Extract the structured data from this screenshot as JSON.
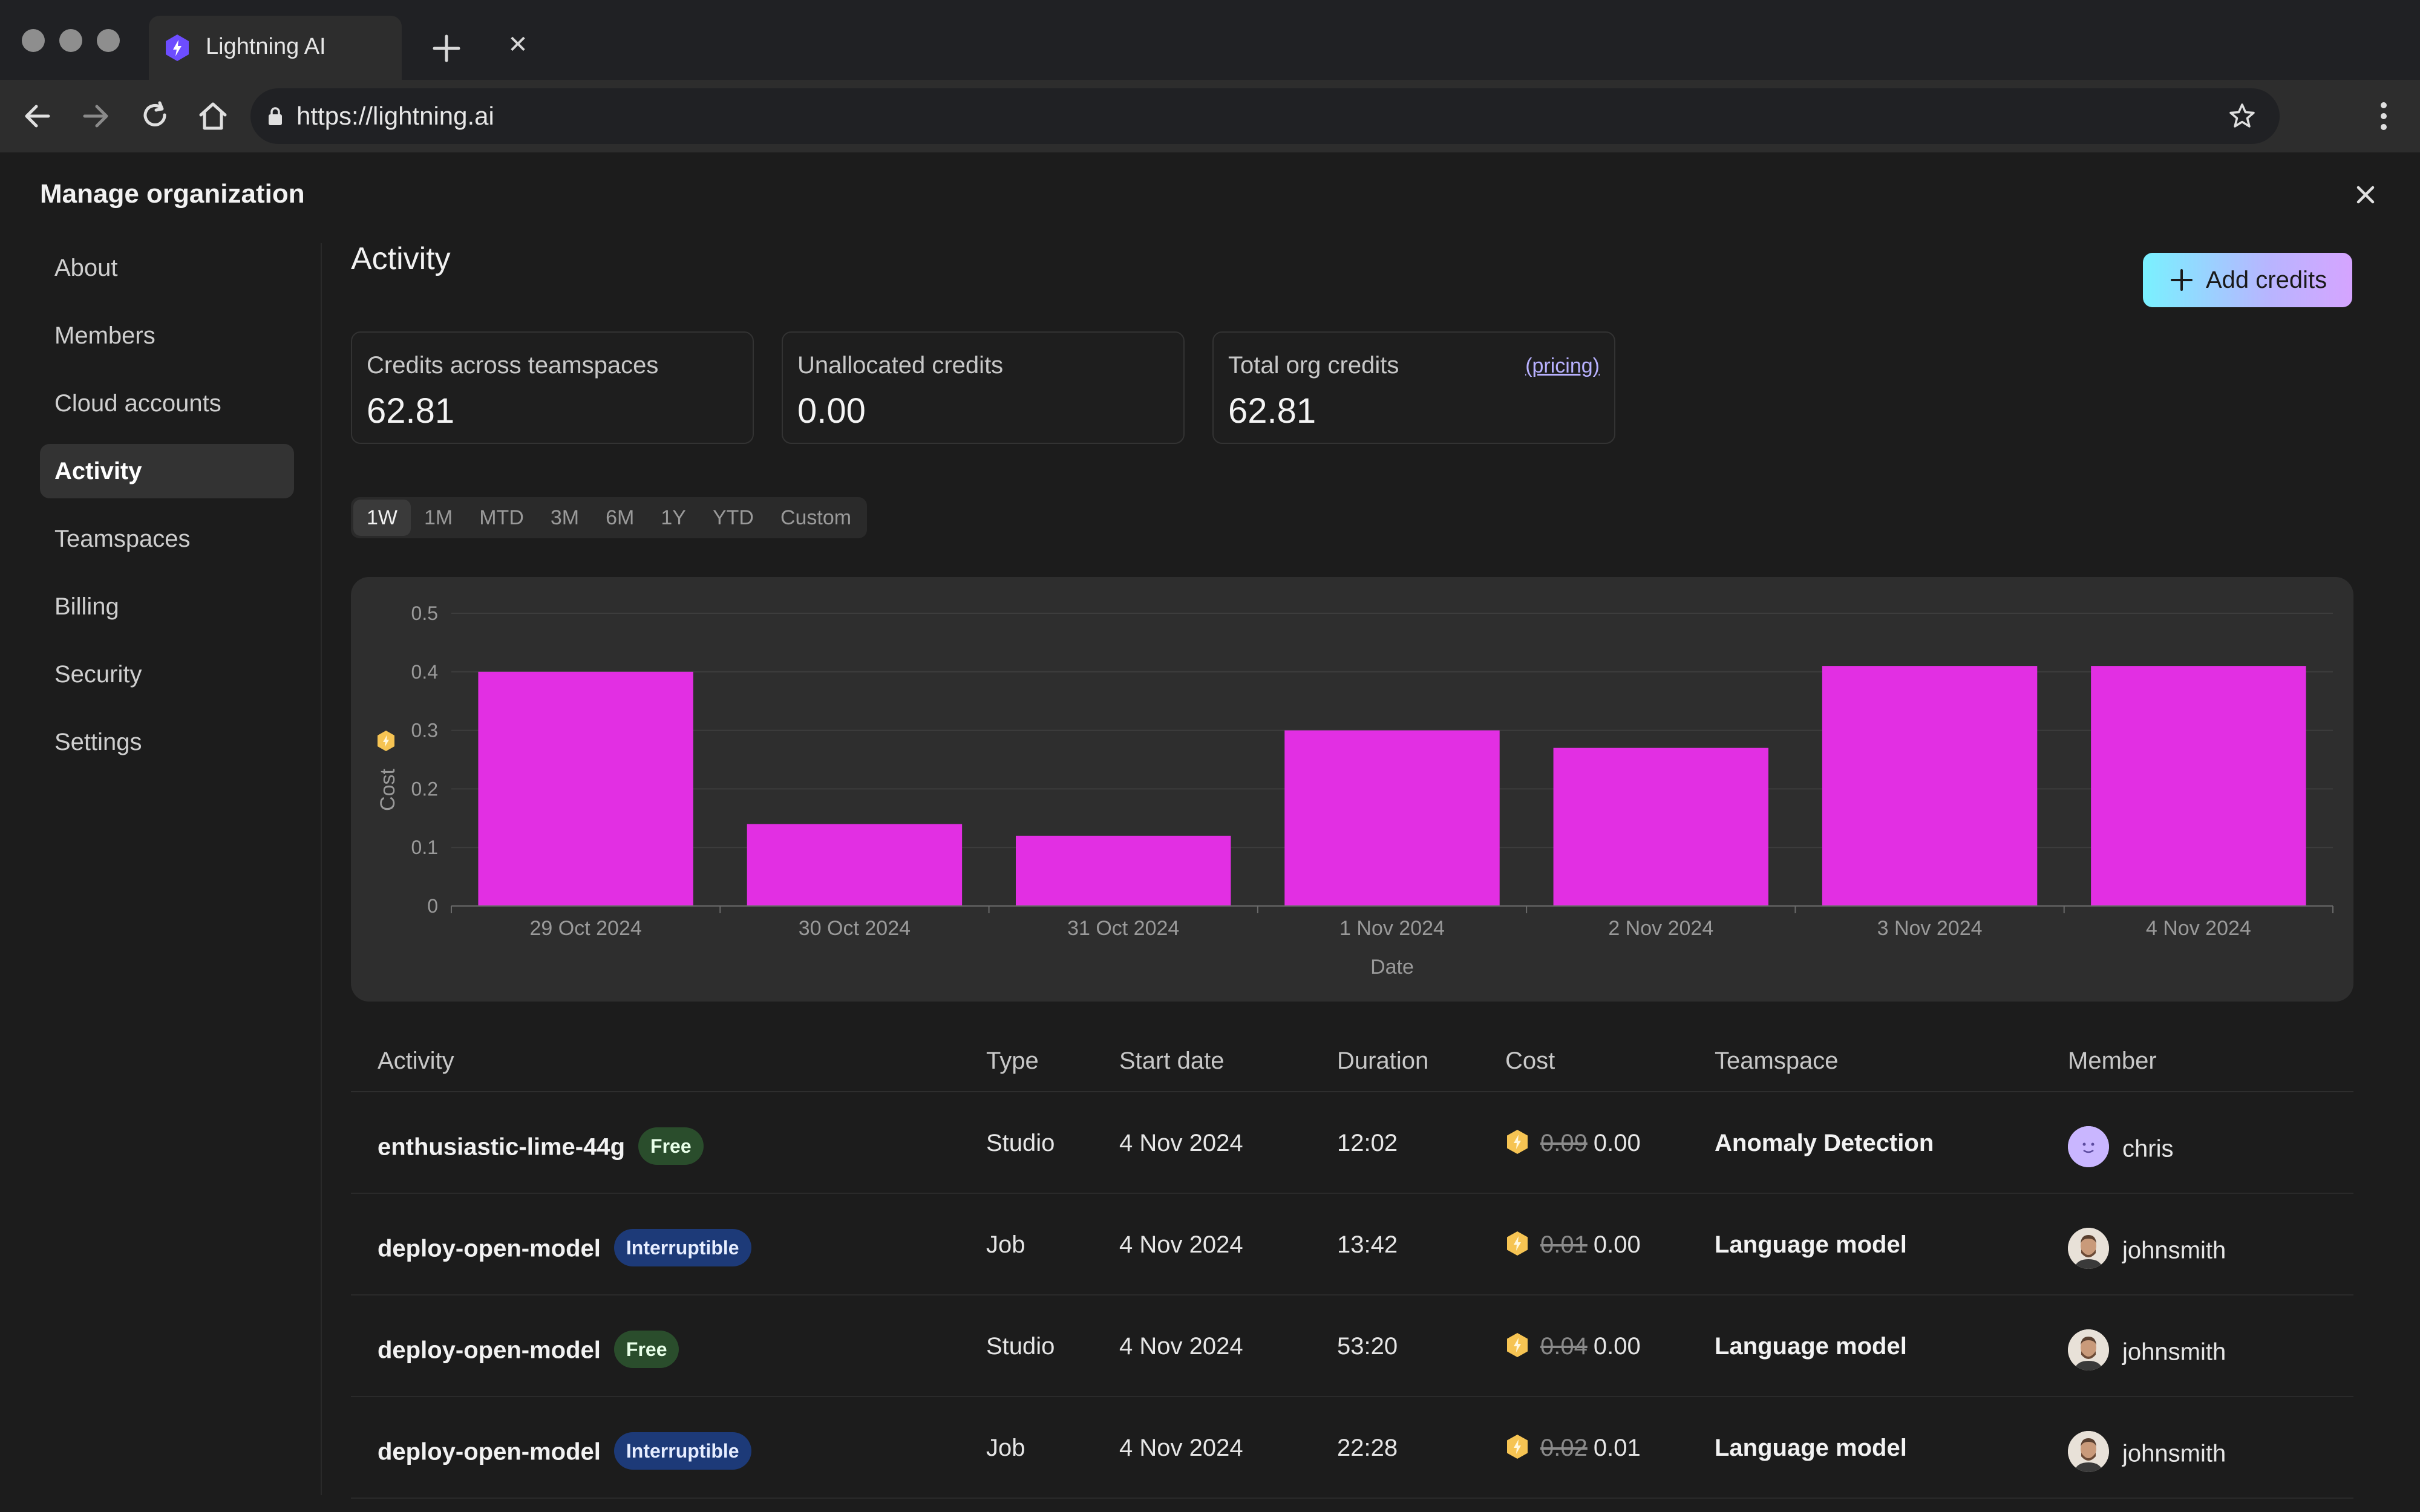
{
  "browser": {
    "tab_title": "Lightning AI",
    "url": "https://lightning.ai"
  },
  "app": {
    "header": "Manage organization",
    "sidebar": {
      "items": [
        {
          "label": "About"
        },
        {
          "label": "Members"
        },
        {
          "label": "Cloud accounts"
        },
        {
          "label": "Activity",
          "active": true
        },
        {
          "label": "Teamspaces"
        },
        {
          "label": "Billing"
        },
        {
          "label": "Security"
        },
        {
          "label": "Settings"
        }
      ]
    },
    "main": {
      "title": "Activity",
      "add_credits_label": "Add credits",
      "stats": [
        {
          "label": "Credits across teamspaces",
          "value": "62.81"
        },
        {
          "label": "Unallocated credits",
          "value": "0.00"
        },
        {
          "label": "Total org credits",
          "value": "62.81",
          "link": "(pricing)"
        }
      ],
      "ranges": [
        "1W",
        "1M",
        "MTD",
        "3M",
        "6M",
        "1Y",
        "YTD",
        "Custom"
      ],
      "active_range": "1W"
    },
    "table": {
      "headers": [
        "Activity",
        "Type",
        "Start date",
        "Duration",
        "Cost",
        "Teamspace",
        "Member"
      ],
      "rows": [
        {
          "activity": "enthusiastic-lime-44g",
          "badge": "Free",
          "badge_kind": "free",
          "type": "Studio",
          "start": "4 Nov 2024",
          "duration": "12:02",
          "cost_old": "0.09",
          "cost": "0.00",
          "teamspace": "Anomaly Detection",
          "member": "chris",
          "avatar": "chris"
        },
        {
          "activity": "deploy-open-model",
          "badge": "Interruptible",
          "badge_kind": "int",
          "type": "Job",
          "start": "4 Nov 2024",
          "duration": "13:42",
          "cost_old": "0.01",
          "cost": "0.00",
          "teamspace": "Language model",
          "member": "johnsmith",
          "avatar": "john"
        },
        {
          "activity": "deploy-open-model",
          "badge": "Free",
          "badge_kind": "free",
          "type": "Studio",
          "start": "4 Nov 2024",
          "duration": "53:20",
          "cost_old": "0.04",
          "cost": "0.00",
          "teamspace": "Language model",
          "member": "johnsmith",
          "avatar": "john"
        },
        {
          "activity": "deploy-open-model",
          "badge": "Interruptible",
          "badge_kind": "int",
          "type": "Job",
          "start": "4 Nov 2024",
          "duration": "22:28",
          "cost_old": "0.02",
          "cost": "0.01",
          "teamspace": "Language model",
          "member": "johnsmith",
          "avatar": "john"
        }
      ]
    }
  },
  "colors": {
    "bar": "#e22fe3",
    "badge_free": "#2a4d2c",
    "badge_interruptible": "#1d3a78",
    "credit_icon": "#f6c453"
  },
  "chart_data": {
    "type": "bar",
    "categories": [
      "29 Oct 2024",
      "30 Oct 2024",
      "31 Oct 2024",
      "1 Nov 2024",
      "2 Nov 2024",
      "3 Nov 2024",
      "4 Nov 2024"
    ],
    "values": [
      0.4,
      0.14,
      0.12,
      0.3,
      0.27,
      0.41,
      0.41
    ],
    "xlabel": "Date",
    "ylabel": "Cost",
    "ylim": [
      0,
      0.5
    ],
    "yticks": [
      "0",
      "0.1",
      "0.2",
      "0.3",
      "0.4",
      "0.5"
    ],
    "grid": true
  }
}
